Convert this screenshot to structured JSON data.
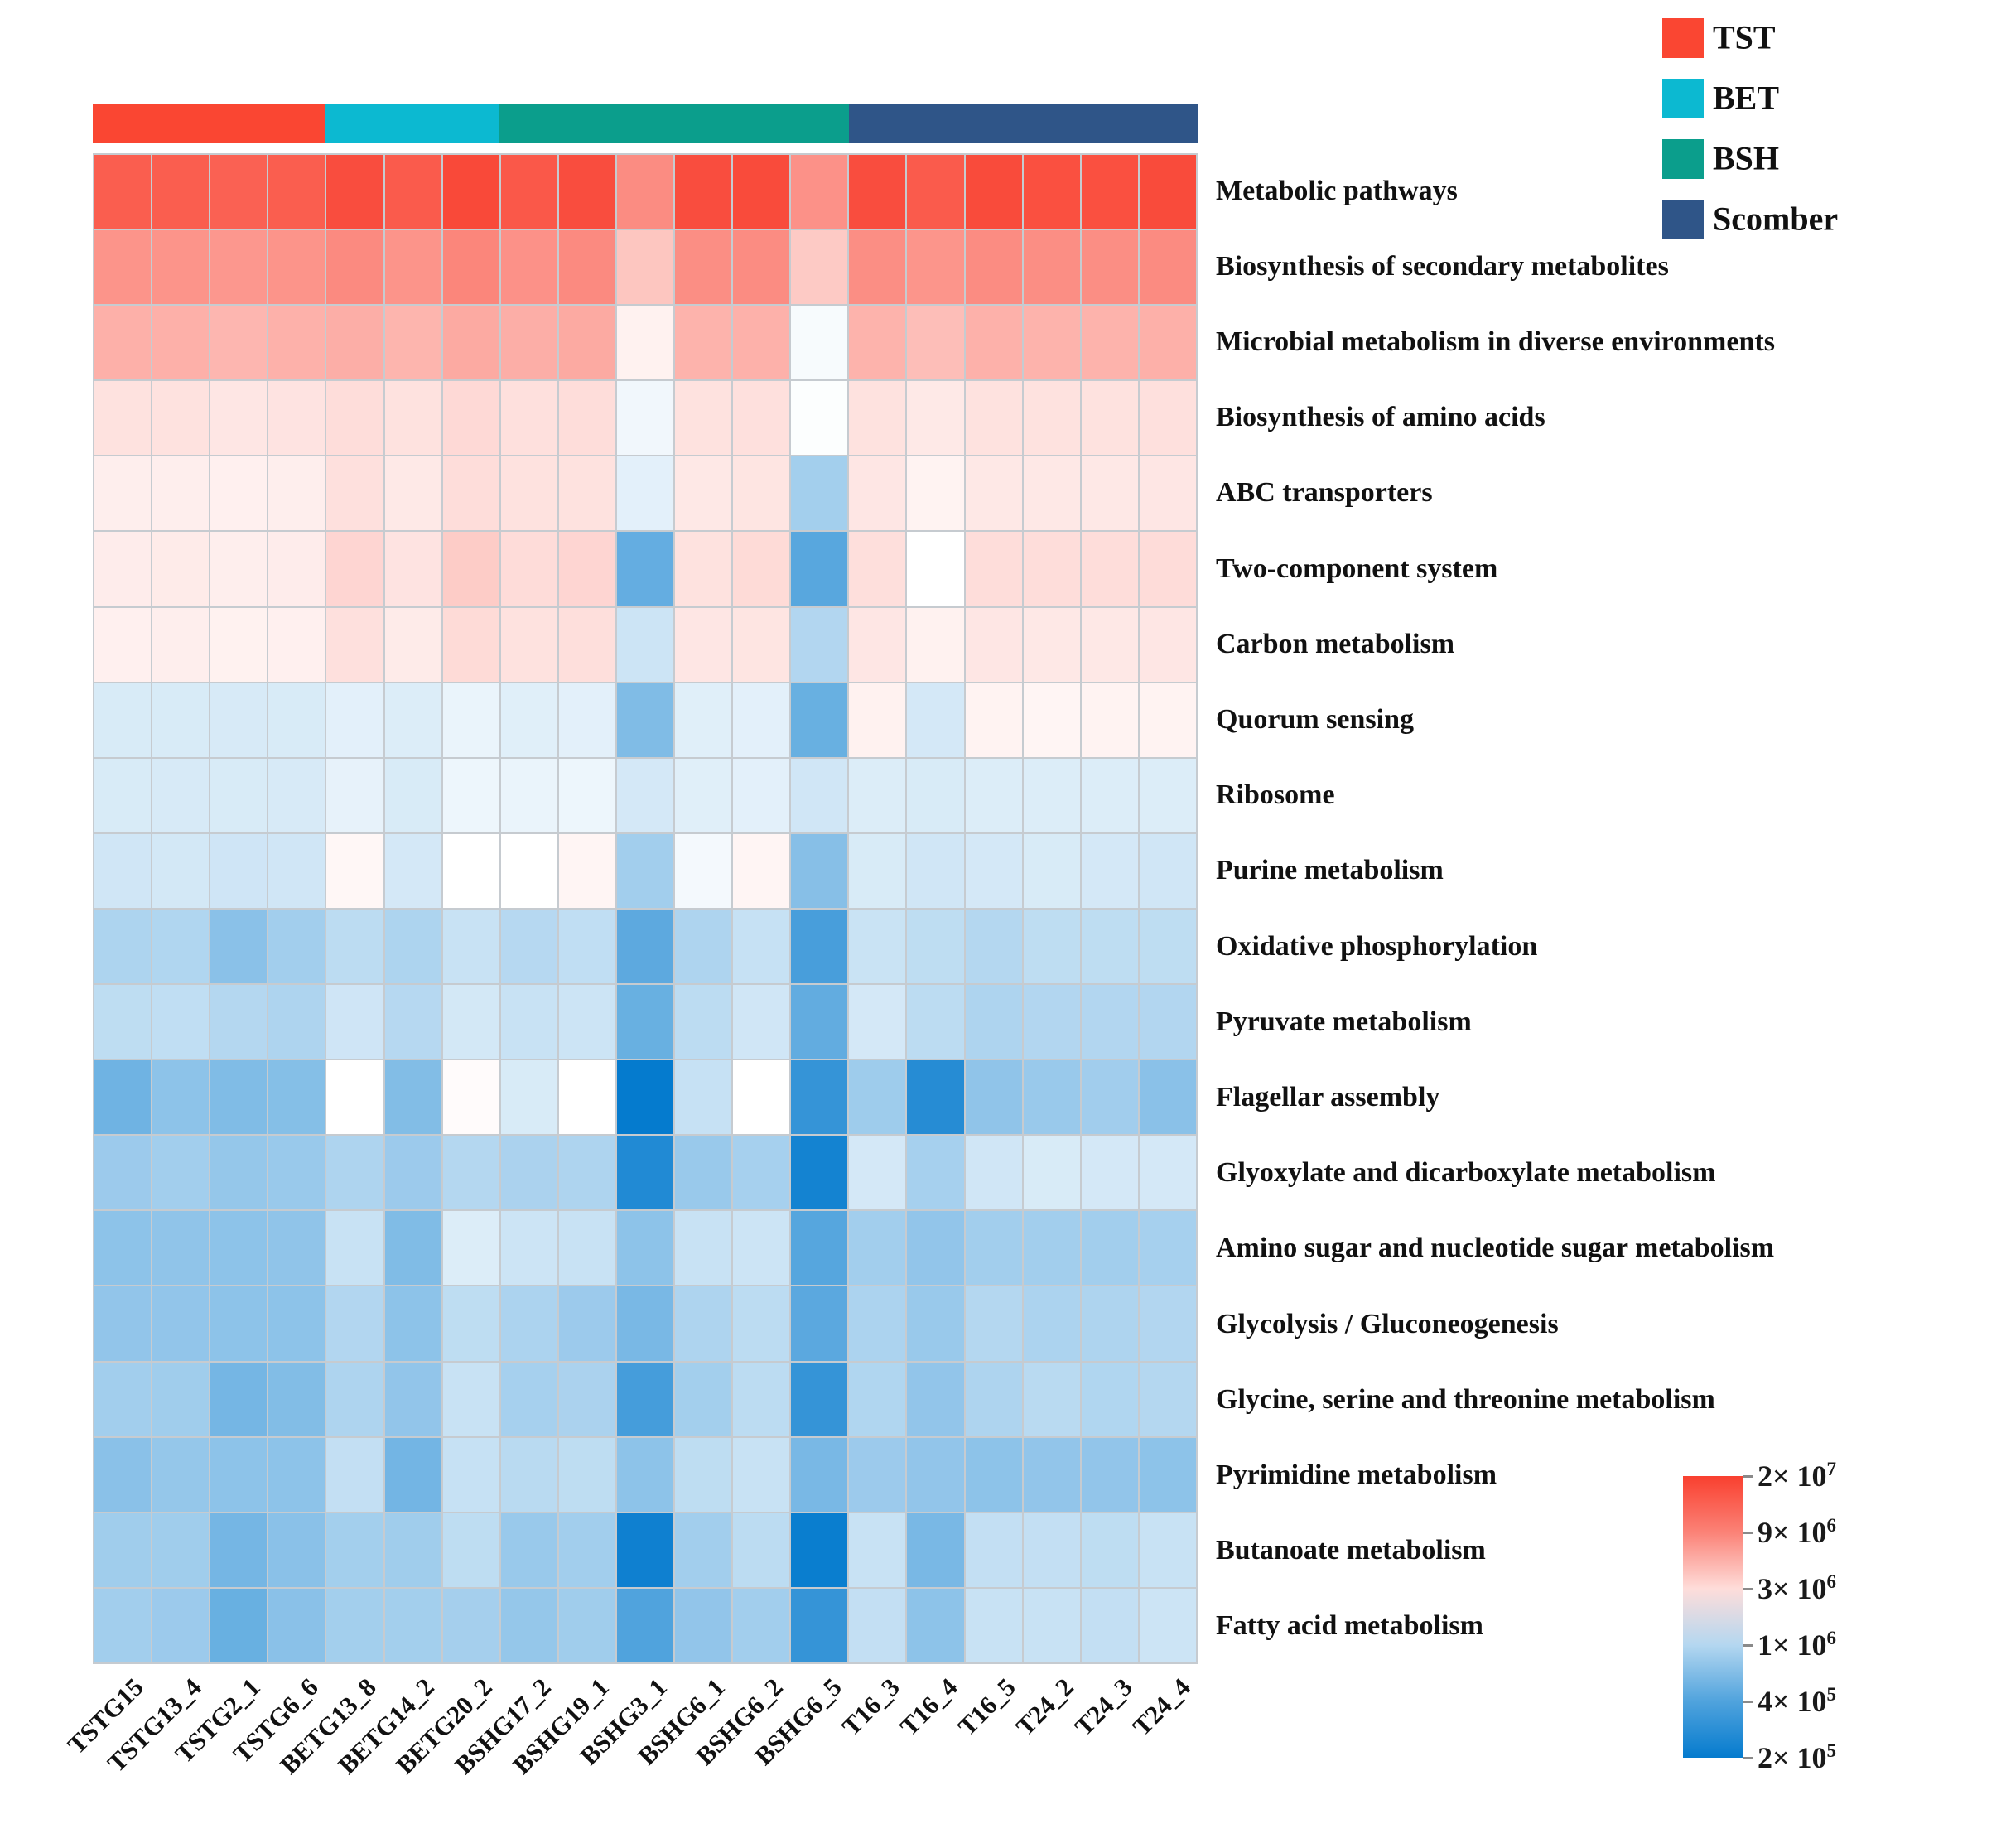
{
  "figure": {
    "kind": "KEGG pathway abundance heatmap",
    "background": "#FFFFFF",
    "grid_color": "#C6CBD0"
  },
  "legend": {
    "position": "top-right",
    "items": [
      {
        "label": "TST",
        "color": "#FA4632"
      },
      {
        "label": "BET",
        "color": "#0CB9D1"
      },
      {
        "label": "BSH",
        "color": "#0B9E8C"
      },
      {
        "label": "Scomber",
        "color": "#2F5588"
      }
    ]
  },
  "chart_data": {
    "type": "heatmap",
    "title": "",
    "xlabel": "",
    "ylabel": "",
    "legend_position": "top-right",
    "grid": true,
    "rows": [
      "Metabolic pathways",
      "Biosynthesis of secondary metabolites",
      "Microbial metabolism in diverse environments",
      "Biosynthesis of amino acids",
      "ABC transporters",
      "Two-component system",
      "Carbon metabolism",
      "Quorum sensing",
      "Ribosome",
      "Purine metabolism",
      "Oxidative phosphorylation",
      "Pyruvate metabolism",
      "Flagellar assembly",
      "Glyoxylate and dicarboxylate metabolism",
      "Amino sugar and nucleotide sugar metabolism",
      "Glycolysis / Gluconeogenesis",
      "Glycine, serine and threonine metabolism",
      "Pyrimidine metabolism",
      "Butanoate metabolism",
      "Fatty acid metabolism"
    ],
    "columns": [
      "TSTG15",
      "TSTG13_4",
      "TSTG2_1",
      "TSTG6_6",
      "BETG13_8",
      "BETG14_2",
      "BETG20_2",
      "BSHG17_2",
      "BSHG19_1",
      "BSHG3_1",
      "BSHG6_1",
      "BSHG6_2",
      "BSHG6_5",
      "T16_3",
      "T16_4",
      "T16_5",
      "T24_2",
      "T24_3",
      "T24_4"
    ],
    "column_groups": [
      {
        "name": "TST",
        "color": "#FA4632",
        "columns": [
          "TSTG15",
          "TSTG13_4",
          "TSTG2_1",
          "TSTG6_6"
        ]
      },
      {
        "name": "BET",
        "color": "#0CB9D1",
        "columns": [
          "BETG13_8",
          "BETG14_2",
          "BETG20_2"
        ]
      },
      {
        "name": "BSH",
        "color": "#0B9E8C",
        "columns": [
          "BSHG17_2",
          "BSHG19_1",
          "BSHG3_1",
          "BSHG6_1",
          "BSHG6_2",
          "BSHG6_5"
        ]
      },
      {
        "name": "Scomber",
        "color": "#2F5588",
        "columns": [
          "T16_3",
          "T16_4",
          "T16_5",
          "T24_2",
          "T24_3",
          "T24_4"
        ]
      }
    ],
    "values_unit": "abundance; cell value = listed number × 10^6",
    "values_e6": [
      [
        14,
        14,
        13.5,
        14,
        17,
        14.5,
        18,
        15,
        17,
        8,
        17,
        17.5,
        7.5,
        17,
        14.5,
        17.5,
        16.5,
        16.5,
        17.5
      ],
      [
        7.3,
        7.3,
        7.0,
        7.3,
        8.2,
        7.3,
        8.6,
        7.5,
        8.2,
        4.0,
        7.8,
        8.0,
        3.8,
        7.8,
        7.2,
        8.0,
        7.8,
        7.8,
        8.1
      ],
      [
        5.2,
        5.2,
        4.8,
        5.1,
        5.3,
        4.9,
        5.6,
        5.3,
        5.6,
        2.35,
        5.0,
        5.1,
        1.85,
        5.0,
        4.4,
        5.1,
        5.0,
        5.0,
        5.2
      ],
      [
        2.85,
        2.85,
        2.7,
        2.8,
        3.0,
        2.85,
        3.15,
        2.9,
        3.0,
        1.75,
        2.85,
        2.9,
        1.95,
        2.85,
        2.6,
        2.85,
        2.85,
        2.85,
        2.9
      ],
      [
        2.45,
        2.45,
        2.4,
        2.45,
        2.9,
        2.6,
        3.0,
        2.85,
        2.85,
        1.55,
        2.65,
        2.75,
        0.86,
        2.7,
        2.3,
        2.65,
        2.65,
        2.65,
        2.7
      ],
      [
        2.5,
        2.55,
        2.45,
        2.5,
        3.3,
        2.8,
        3.7,
        3.05,
        3.3,
        0.48,
        2.85,
        3.1,
        0.43,
        2.95,
        2.0,
        3.0,
        3.0,
        3.0,
        3.05
      ],
      [
        2.4,
        2.45,
        2.35,
        2.4,
        2.9,
        2.55,
        3.1,
        2.85,
        2.95,
        1.25,
        2.7,
        2.75,
        0.98,
        2.7,
        2.35,
        2.7,
        2.65,
        2.65,
        2.7
      ],
      [
        1.4,
        1.4,
        1.38,
        1.4,
        1.55,
        1.45,
        1.65,
        1.5,
        1.55,
        0.62,
        1.5,
        1.55,
        0.5,
        2.35,
        1.35,
        2.3,
        2.25,
        2.3,
        2.3
      ],
      [
        1.4,
        1.38,
        1.4,
        1.38,
        1.6,
        1.4,
        1.7,
        1.65,
        1.7,
        1.35,
        1.5,
        1.55,
        1.3,
        1.45,
        1.4,
        1.45,
        1.45,
        1.45,
        1.45
      ],
      [
        1.3,
        1.33,
        1.28,
        1.3,
        2.2,
        1.35,
        2.0,
        2.0,
        2.25,
        0.85,
        1.8,
        2.25,
        0.66,
        1.4,
        1.3,
        1.35,
        1.4,
        1.35,
        1.3
      ],
      [
        0.94,
        0.97,
        0.68,
        0.85,
        1.08,
        0.94,
        1.2,
        1.02,
        1.12,
        0.45,
        0.95,
        1.18,
        0.37,
        1.22,
        1.1,
        1.0,
        1.1,
        1.1,
        1.1
      ],
      [
        1.1,
        1.12,
        1.0,
        0.95,
        1.28,
        1.02,
        1.33,
        1.2,
        1.25,
        0.5,
        1.08,
        1.3,
        0.47,
        1.35,
        1.08,
        0.95,
        0.98,
        0.98,
        0.98
      ],
      [
        0.53,
        0.7,
        0.62,
        0.65,
        2.0,
        0.63,
        2.1,
        1.4,
        2.0,
        0.2,
        1.18,
        2.0,
        0.31,
        0.82,
        0.27,
        0.72,
        0.78,
        0.84,
        0.68
      ],
      [
        0.8,
        0.85,
        0.75,
        0.78,
        0.95,
        0.8,
        1.0,
        0.92,
        0.95,
        0.26,
        0.78,
        0.88,
        0.23,
        1.35,
        0.88,
        1.3,
        1.4,
        1.35,
        1.35
      ],
      [
        0.7,
        0.72,
        0.7,
        0.72,
        1.2,
        0.62,
        1.45,
        1.25,
        1.2,
        0.7,
        1.2,
        1.25,
        0.42,
        0.85,
        0.73,
        0.85,
        0.85,
        0.85,
        0.88
      ],
      [
        0.73,
        0.73,
        0.7,
        0.7,
        0.98,
        0.7,
        1.1,
        0.93,
        0.8,
        0.58,
        0.95,
        1.08,
        0.44,
        0.93,
        0.78,
        1.0,
        0.93,
        0.95,
        0.98
      ],
      [
        0.85,
        0.83,
        0.56,
        0.63,
        0.95,
        0.73,
        1.2,
        0.88,
        0.92,
        0.36,
        0.86,
        1.08,
        0.31,
        0.97,
        0.73,
        0.95,
        1.05,
        0.97,
        1.0
      ],
      [
        0.68,
        0.75,
        0.7,
        0.7,
        1.15,
        0.55,
        1.18,
        1.05,
        1.1,
        0.7,
        1.1,
        1.2,
        0.58,
        0.8,
        0.73,
        0.7,
        0.73,
        0.73,
        0.7
      ],
      [
        0.83,
        0.83,
        0.56,
        0.68,
        0.86,
        0.83,
        1.1,
        0.78,
        0.85,
        0.22,
        0.85,
        1.08,
        0.21,
        1.2,
        0.58,
        1.15,
        1.15,
        1.1,
        1.2
      ],
      [
        0.85,
        0.8,
        0.5,
        0.68,
        0.86,
        0.86,
        0.87,
        0.75,
        0.83,
        0.4,
        0.73,
        0.85,
        0.31,
        1.15,
        0.7,
        1.2,
        1.2,
        1.15,
        1.25
      ]
    ],
    "scale": {
      "type": "log",
      "min": 200000,
      "max": 20000000,
      "white_at": 2000000
    },
    "colormap": {
      "high": "#F9402F",
      "mid": "#FFFFFF",
      "low": "#057BCE"
    },
    "colorbar_ticks": [
      {
        "man": "2× 10",
        "exp": "7"
      },
      {
        "man": "9× 10",
        "exp": "6"
      },
      {
        "man": "3× 10",
        "exp": "6"
      },
      {
        "man": "1× 10",
        "exp": "6"
      },
      {
        "man": "4× 10",
        "exp": "5"
      },
      {
        "man": "2× 10",
        "exp": "5"
      }
    ]
  }
}
